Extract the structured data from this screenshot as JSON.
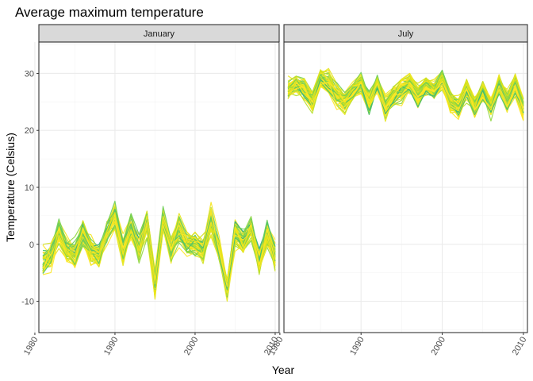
{
  "chart_data": {
    "type": "line",
    "title": "Average maximum temperature",
    "xlabel": "Year",
    "ylabel": "Temperature (Celsius)",
    "xlim": [
      1980.5,
      2010.5
    ],
    "ylim": [
      -15.5,
      35.5
    ],
    "x_ticks": [
      1980,
      1990,
      2000,
      2010
    ],
    "y_ticks": [
      -10,
      0,
      10,
      20,
      30
    ],
    "grid": true,
    "legend": "none",
    "facet_labels": [
      "January",
      "July"
    ],
    "x": [
      1981,
      1982,
      1983,
      1984,
      1985,
      1986,
      1987,
      1988,
      1989,
      1990,
      1991,
      1992,
      1993,
      1994,
      1995,
      1996,
      1997,
      1998,
      1999,
      2000,
      2001,
      2002,
      2003,
      2004,
      2005,
      2006,
      2007,
      2008,
      2009,
      2010
    ],
    "panels": [
      {
        "name": "January",
        "mean": [
          -3,
          -2,
          2,
          -1,
          -2,
          2,
          -1,
          -2,
          2,
          5,
          -1,
          3,
          -1,
          4,
          -7,
          4,
          -1,
          3,
          0,
          0,
          -1,
          4,
          -1,
          -8,
          2,
          0,
          3,
          -3,
          2,
          -2
        ],
        "spread": [
          4,
          4,
          3,
          3,
          4,
          3,
          3,
          3,
          3,
          3,
          3,
          3,
          3,
          3,
          3,
          3,
          3,
          4,
          3,
          3,
          3,
          4,
          3,
          3,
          4,
          3,
          3,
          4,
          3,
          4
        ],
        "series_count": 60
      },
      {
        "name": "July",
        "mean": [
          27,
          28,
          27,
          25,
          29,
          28,
          26,
          25,
          27,
          28,
          25,
          28,
          24,
          26,
          27,
          28,
          26,
          28,
          27,
          29,
          25,
          24,
          27,
          24,
          27,
          24,
          28,
          25,
          28,
          24
        ],
        "spread": [
          2,
          2.5,
          2.5,
          2.5,
          2,
          2.5,
          2.5,
          2.5,
          2,
          2.5,
          2.5,
          2,
          2.5,
          2.5,
          2.5,
          2,
          2.5,
          2.5,
          2,
          2.5,
          2.5,
          2.5,
          2,
          2.5,
          2.5,
          2.5,
          2,
          2.5,
          2.5,
          2.5
        ],
        "series_count": 60
      }
    ],
    "palette": [
      "#1f9e89",
      "#26a884",
      "#35b779",
      "#4ac16d",
      "#6ece58",
      "#90d743",
      "#b5de2b",
      "#d0e11c",
      "#e6e419",
      "#f4e61e",
      "#fde725"
    ],
    "colors": {
      "panel_background": "#ffffff",
      "grid": "#ebebeb",
      "strip_background": "#d9d9d9",
      "border": "#333333"
    }
  }
}
